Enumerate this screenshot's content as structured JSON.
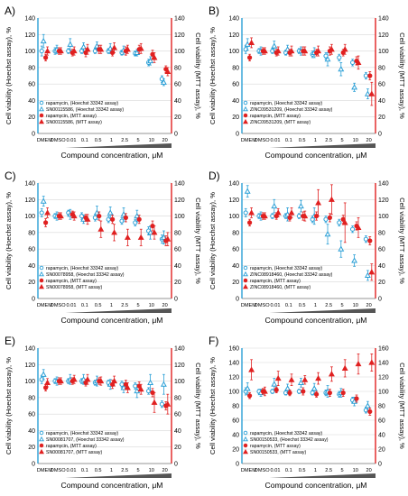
{
  "colors": {
    "hoechst": "#2a9fd6",
    "mtt": "#e02020",
    "axis_left": "#2a9fd6",
    "axis_right": "#e02020",
    "grid": "#d8d8d8",
    "bar": "#555555"
  },
  "chart_data": [
    {
      "panel_label": "A)",
      "type": "scatter",
      "categories": [
        "DMEM",
        "DMSO",
        "0.01",
        "0.1",
        "0.5",
        "1",
        "2.5",
        "5",
        "10",
        "20"
      ],
      "ylabel_left": "Cell viability (Hoechst assay), %",
      "ylabel_right": "Cell viability (MTT assay), %",
      "xlabel": "Compound concentration, μM",
      "ylim_left": [
        0,
        140
      ],
      "ylim_right": [
        0,
        140
      ],
      "yticks_left": [
        "0",
        "20",
        "40",
        "60",
        "80",
        "100",
        "120",
        "140"
      ],
      "yticks_right": [
        "0",
        "20",
        "40",
        "60",
        "80",
        "100",
        "120",
        "140"
      ],
      "series": [
        {
          "name": "rapamycin, (Hoechst 33342 assay)",
          "assay": "hoechst",
          "marker": "circle",
          "values": [
            100,
            100,
            100,
            100,
            100,
            100,
            98,
            97,
            86,
            66
          ],
          "errors": [
            6,
            4,
            3,
            3,
            3,
            3,
            3,
            3,
            4,
            4
          ]
        },
        {
          "name": "SN00115586, (Hoechst 33342 assay)",
          "assay": "hoechst",
          "marker": "triangle",
          "values": [
            112,
            102,
            108,
            105,
            106,
            103,
            101,
            98,
            88,
            62
          ],
          "errors": [
            8,
            5,
            7,
            5,
            5,
            6,
            5,
            4,
            5,
            4
          ]
        },
        {
          "name": "rapamycin, (MTT assay)",
          "assay": "mtt",
          "marker": "circle",
          "values": [
            92,
            100,
            98,
            98,
            102,
            98,
            100,
            102,
            96,
            78
          ],
          "errors": [
            4,
            4,
            4,
            5,
            5,
            4,
            5,
            5,
            5,
            4
          ]
        },
        {
          "name": "SN00115586, (MTT assay)",
          "assay": "mtt",
          "marker": "triangle",
          "values": [
            100,
            100,
            100,
            102,
            102,
            104,
            102,
            103,
            92,
            75
          ],
          "errors": [
            5,
            4,
            5,
            6,
            5,
            6,
            5,
            6,
            6,
            5
          ]
        }
      ]
    },
    {
      "panel_label": "B)",
      "type": "scatter",
      "categories": [
        "DMEM",
        "DMSO",
        "0.01",
        "0.1",
        "0.5",
        "1",
        "2.5",
        "5",
        "10",
        "20"
      ],
      "ylabel_left": "Cell viability (Hoechst assay), %",
      "ylabel_right": "Cell viability (MTT assay), %",
      "xlabel": "Compound concentration, μM",
      "ylim_left": [
        0,
        140
      ],
      "ylim_right": [
        0,
        140
      ],
      "yticks_left": [
        "0",
        "20",
        "40",
        "60",
        "80",
        "100",
        "120",
        "140"
      ],
      "yticks_right": [
        "0",
        "20",
        "40",
        "60",
        "80",
        "100",
        "120",
        "140"
      ],
      "series": [
        {
          "name": "rapamycin, (Hoechst 33342 assay)",
          "assay": "hoechst",
          "marker": "circle",
          "values": [
            102,
            100,
            100,
            98,
            100,
            96,
            94,
            92,
            86,
            70
          ],
          "errors": [
            5,
            3,
            3,
            3,
            3,
            4,
            4,
            4,
            4,
            4
          ]
        },
        {
          "name": "ZINC09531209, (Hoechst 33342 assay)",
          "assay": "hoechst",
          "marker": "triangle",
          "values": [
            108,
            100,
            106,
            102,
            100,
            98,
            90,
            78,
            56,
            48
          ],
          "errors": [
            7,
            5,
            6,
            5,
            5,
            6,
            8,
            8,
            5,
            6
          ]
        },
        {
          "name": "rapamycin, (MTT assay)",
          "assay": "mtt",
          "marker": "circle",
          "values": [
            92,
            100,
            98,
            98,
            100,
            98,
            100,
            98,
            88,
            70
          ],
          "errors": [
            4,
            4,
            4,
            4,
            5,
            4,
            5,
            4,
            5,
            5
          ]
        },
        {
          "name": "ZINC09531209, (MTT assay)",
          "assay": "mtt",
          "marker": "triangle",
          "values": [
            110,
            100,
            100,
            100,
            100,
            100,
            102,
            102,
            86,
            48
          ],
          "errors": [
            6,
            4,
            5,
            6,
            5,
            6,
            6,
            6,
            8,
            14
          ]
        }
      ]
    },
    {
      "panel_label": "C)",
      "type": "scatter",
      "categories": [
        "DMEM",
        "DMSO",
        "0.01",
        "0.1",
        "0.5",
        "1",
        "2.5",
        "5",
        "10",
        "20"
      ],
      "ylabel_left": "Cell viability (Hoechst assay), %",
      "ylabel_right": "Cell viability (MTT assay), %",
      "xlabel": "Compound concentration, μM",
      "ylim_left": [
        0,
        140
      ],
      "ylim_right": [
        0,
        140
      ],
      "yticks_left": [
        "0",
        "20",
        "40",
        "60",
        "80",
        "100",
        "120",
        "140"
      ],
      "yticks_right": [
        "0",
        "20",
        "40",
        "60",
        "80",
        "100",
        "120",
        "140"
      ],
      "series": [
        {
          "name": "rapamycin, (Hoechst 33342 assay)",
          "assay": "hoechst",
          "marker": "circle",
          "values": [
            104,
            100,
            104,
            100,
            98,
            96,
            94,
            92,
            82,
            72
          ],
          "errors": [
            5,
            3,
            3,
            4,
            4,
            4,
            4,
            4,
            5,
            5
          ]
        },
        {
          "name": "SN00078958, (Hoechst 33342 assay)",
          "assay": "hoechst",
          "marker": "triangle",
          "values": [
            118,
            100,
            102,
            96,
            104,
            104,
            102,
            100,
            80,
            74
          ],
          "errors": [
            6,
            5,
            6,
            5,
            8,
            7,
            8,
            7,
            8,
            8
          ]
        },
        {
          "name": "rapamycin, (MTT assay)",
          "assay": "mtt",
          "marker": "circle",
          "values": [
            92,
            100,
            102,
            98,
            100,
            96,
            98,
            96,
            88,
            70
          ],
          "errors": [
            5,
            4,
            4,
            4,
            5,
            5,
            5,
            5,
            6,
            6
          ]
        },
        {
          "name": "SN00078958, (MTT assay)",
          "assay": "mtt",
          "marker": "triangle",
          "values": [
            104,
            100,
            100,
            96,
            84,
            80,
            74,
            74,
            80,
            72
          ],
          "errors": [
            6,
            4,
            5,
            6,
            10,
            10,
            10,
            10,
            8,
            8
          ]
        }
      ]
    },
    {
      "panel_label": "D)",
      "type": "scatter",
      "categories": [
        "DMEM",
        "DMSO",
        "0.01",
        "0.1",
        "0.5",
        "1",
        "2.5",
        "5",
        "10",
        "20"
      ],
      "ylabel_left": "Cell viability (Hoechst assay), %",
      "ylabel_right": "Cell viability (MTT assay), %",
      "xlabel": "Compound concentration, μM",
      "ylim_left": [
        0,
        140
      ],
      "ylim_right": [
        0,
        140
      ],
      "yticks_left": [
        "0",
        "20",
        "40",
        "60",
        "80",
        "100",
        "120",
        "140"
      ],
      "yticks_right": [
        "0",
        "20",
        "40",
        "60",
        "80",
        "100",
        "120",
        "140"
      ],
      "series": [
        {
          "name": "rapamycin, (Hoechst 33342 assay)",
          "assay": "hoechst",
          "marker": "circle",
          "values": [
            104,
            100,
            100,
            100,
            100,
            96,
            96,
            92,
            84,
            72
          ],
          "errors": [
            5,
            3,
            3,
            3,
            3,
            4,
            4,
            4,
            4,
            4
          ]
        },
        {
          "name": "ZINC08918460, (Hoechst 33342 assay)",
          "assay": "hoechst",
          "marker": "triangle",
          "values": [
            130,
            100,
            112,
            102,
            112,
            100,
            78,
            60,
            46,
            28
          ],
          "errors": [
            7,
            5,
            8,
            8,
            7,
            10,
            12,
            10,
            7,
            6
          ]
        },
        {
          "name": "rapamycin, (MTT assay)",
          "assay": "mtt",
          "marker": "circle",
          "values": [
            92,
            100,
            100,
            98,
            100,
            100,
            98,
            96,
            88,
            70
          ],
          "errors": [
            4,
            4,
            4,
            4,
            5,
            5,
            5,
            5,
            5,
            5
          ]
        },
        {
          "name": "ZINC08918460, (MTT assay)",
          "assay": "mtt",
          "marker": "triangle",
          "values": [
            104,
            100,
            104,
            104,
            100,
            116,
            120,
            92,
            86,
            32
          ],
          "errors": [
            6,
            4,
            5,
            6,
            6,
            16,
            18,
            24,
            12,
            10
          ]
        }
      ]
    },
    {
      "panel_label": "E)",
      "type": "scatter",
      "categories": [
        "DMEM",
        "DMSO",
        "0.01",
        "0.1",
        "0.5",
        "1",
        "2.5",
        "5",
        "10",
        "20"
      ],
      "ylabel_left": "Cell viability (Hoechst assay), %",
      "ylabel_right": "Cell viability (MTT assay), %",
      "xlabel": "Compound concentration, μM",
      "ylim_left": [
        0,
        140
      ],
      "ylim_right": [
        0,
        140
      ],
      "yticks_left": [
        "0",
        "20",
        "40",
        "60",
        "80",
        "100",
        "120",
        "140"
      ],
      "yticks_right": [
        "0",
        "20",
        "40",
        "60",
        "80",
        "100",
        "120",
        "140"
      ],
      "series": [
        {
          "name": "rapamycin, (Hoechst 33342 assay)",
          "assay": "hoechst",
          "marker": "circle",
          "values": [
            102,
            100,
            100,
            100,
            98,
            98,
            96,
            94,
            88,
            72
          ],
          "errors": [
            5,
            3,
            3,
            3,
            3,
            3,
            4,
            4,
            4,
            4
          ]
        },
        {
          "name": "SN00081707, (Hoechst 33342 assay)",
          "assay": "hoechst",
          "marker": "triangle",
          "values": [
            108,
            100,
            102,
            102,
            100,
            96,
            92,
            88,
            98,
            96
          ],
          "errors": [
            6,
            5,
            6,
            6,
            6,
            6,
            6,
            8,
            10,
            12
          ]
        },
        {
          "name": "rapamycin, (MTT assay)",
          "assay": "mtt",
          "marker": "circle",
          "values": [
            92,
            100,
            100,
            98,
            100,
            96,
            96,
            94,
            86,
            70
          ],
          "errors": [
            4,
            4,
            4,
            4,
            4,
            5,
            5,
            5,
            5,
            5
          ]
        },
        {
          "name": "SN00081707, (MTT assay)",
          "assay": "mtt",
          "marker": "triangle",
          "values": [
            98,
            100,
            102,
            102,
            100,
            100,
            92,
            90,
            74,
            72
          ],
          "errors": [
            5,
            4,
            5,
            6,
            5,
            6,
            6,
            6,
            12,
            12
          ]
        }
      ]
    },
    {
      "panel_label": "F)",
      "type": "scatter",
      "categories": [
        "DMEM",
        "DMSO",
        "0.01",
        "0.1",
        "0.5",
        "1",
        "2.5",
        "5",
        "10",
        "20"
      ],
      "ylabel_left": "Cell viability (Hoechst assay), %",
      "ylabel_right": "Cell viability (MTT assay), %",
      "xlabel": "Compound concentration, μM",
      "ylim_left": [
        0,
        160
      ],
      "ylim_right": [
        0,
        160
      ],
      "yticks_left": [
        "0",
        "20",
        "40",
        "60",
        "80",
        "100",
        "120",
        "140",
        "160"
      ],
      "yticks_right": [
        "0",
        "20",
        "40",
        "60",
        "80",
        "100",
        "120",
        "140",
        "160"
      ],
      "series": [
        {
          "name": "rapamycin, (Hoechst 33342 assay)",
          "assay": "hoechst",
          "marker": "circle",
          "values": [
            100,
            100,
            100,
            98,
            100,
            98,
            98,
            96,
            88,
            74
          ],
          "errors": [
            5,
            3,
            3,
            3,
            3,
            3,
            4,
            4,
            4,
            4
          ]
        },
        {
          "name": "SN00150533, (Hoechst 33342 assay)",
          "assay": "hoechst",
          "marker": "triangle",
          "values": [
            104,
            98,
            110,
            104,
            112,
            104,
            100,
            98,
            86,
            80
          ],
          "errors": [
            8,
            5,
            8,
            6,
            6,
            7,
            8,
            6,
            6,
            6
          ]
        },
        {
          "name": "rapamycin, (MTT assay)",
          "assay": "mtt",
          "marker": "circle",
          "values": [
            94,
            100,
            102,
            98,
            100,
            96,
            98,
            98,
            90,
            72
          ],
          "errors": [
            4,
            4,
            4,
            4,
            5,
            4,
            5,
            5,
            5,
            5
          ]
        },
        {
          "name": "SN00150533, (MTT assay)",
          "assay": "mtt",
          "marker": "triangle",
          "values": [
            130,
            100,
            118,
            116,
            116,
            118,
            124,
            132,
            138,
            140
          ],
          "errors": [
            14,
            6,
            10,
            8,
            6,
            8,
            10,
            12,
            14,
            12
          ]
        }
      ]
    }
  ]
}
